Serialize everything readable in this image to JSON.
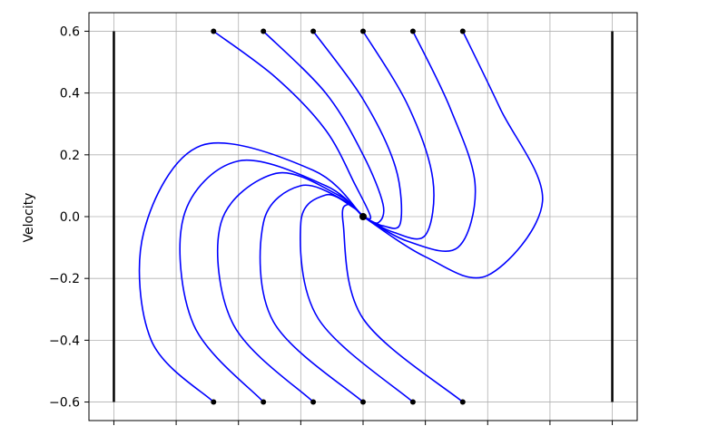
{
  "chart_data": {
    "type": "line",
    "title": "",
    "xlabel": "",
    "ylabel": "Velocity",
    "xlim": [
      -0.011,
      0.011
    ],
    "ylim": [
      -0.66,
      0.66
    ],
    "yticks": [
      0.6,
      0.4,
      0.2,
      0.0,
      -0.2,
      -0.4,
      -0.6
    ],
    "ytick_labels": [
      "0.6",
      "0.4",
      "0.2",
      "0.0",
      "−0.2",
      "−0.4",
      "−0.6"
    ],
    "xticks": [
      -0.01,
      -0.0075,
      -0.005,
      -0.0025,
      0.0,
      0.0025,
      0.005,
      0.0075,
      0.01
    ],
    "grid": true,
    "colors": {
      "trajectory": "#0000ff",
      "marker": "#000000",
      "wall": "#000000",
      "grid": "#b0b0b0"
    },
    "equilibrium": {
      "x": 0.0,
      "y": 0.0
    },
    "walls": [
      {
        "x": -0.01,
        "y": [
          -0.6,
          0.6
        ]
      },
      {
        "x": 0.01,
        "y": [
          -0.6,
          0.6
        ]
      }
    ],
    "start_points": [
      {
        "x": -0.006,
        "y": 0.6
      },
      {
        "x": -0.004,
        "y": 0.6
      },
      {
        "x": -0.002,
        "y": 0.6
      },
      {
        "x": 0.0,
        "y": 0.6
      },
      {
        "x": 0.002,
        "y": 0.6
      },
      {
        "x": 0.004,
        "y": 0.6
      },
      {
        "x": -0.006,
        "y": -0.6
      },
      {
        "x": -0.004,
        "y": -0.6
      },
      {
        "x": -0.002,
        "y": -0.6
      },
      {
        "x": 0.0,
        "y": -0.6
      },
      {
        "x": 0.002,
        "y": -0.6
      },
      {
        "x": 0.004,
        "y": -0.6
      }
    ],
    "series": [
      {
        "points": [
          [
            -0.006,
            0.6
          ],
          [
            -0.0035,
            0.45
          ],
          [
            -0.0015,
            0.28
          ],
          [
            -0.0003,
            0.1
          ],
          [
            0.0003,
            0.0
          ],
          [
            0.0,
            0.0
          ]
        ]
      },
      {
        "points": [
          [
            -0.004,
            0.6
          ],
          [
            -0.0015,
            0.4
          ],
          [
            0.0,
            0.2
          ],
          [
            0.0008,
            0.04
          ],
          [
            0.0006,
            -0.02
          ],
          [
            0.0,
            0.0
          ]
        ]
      },
      {
        "points": [
          [
            -0.002,
            0.6
          ],
          [
            0.0,
            0.38
          ],
          [
            0.0013,
            0.16
          ],
          [
            0.0015,
            -0.02
          ],
          [
            0.0008,
            -0.03
          ],
          [
            0.0,
            0.0
          ]
        ]
      },
      {
        "points": [
          [
            0.0,
            0.6
          ],
          [
            0.0018,
            0.36
          ],
          [
            0.0028,
            0.12
          ],
          [
            0.0025,
            -0.06
          ],
          [
            0.0012,
            -0.05
          ],
          [
            0.0,
            0.0
          ]
        ]
      },
      {
        "points": [
          [
            0.002,
            0.6
          ],
          [
            0.0035,
            0.35
          ],
          [
            0.0045,
            0.1
          ],
          [
            0.0038,
            -0.1
          ],
          [
            0.0018,
            -0.08
          ],
          [
            0.0,
            0.0
          ]
        ]
      },
      {
        "points": [
          [
            0.004,
            0.6
          ],
          [
            0.0055,
            0.35
          ],
          [
            0.0072,
            0.05
          ],
          [
            0.005,
            -0.19
          ],
          [
            0.0025,
            -0.13
          ],
          [
            0.0,
            0.0
          ]
        ]
      },
      {
        "points": [
          [
            -0.006,
            -0.6
          ],
          [
            -0.0085,
            -0.4
          ],
          [
            -0.0088,
            -0.05
          ],
          [
            -0.0065,
            0.23
          ],
          [
            -0.002,
            0.15
          ],
          [
            0.0,
            0.0
          ]
        ]
      },
      {
        "points": [
          [
            -0.004,
            -0.6
          ],
          [
            -0.0068,
            -0.35
          ],
          [
            -0.0072,
            0.0
          ],
          [
            -0.005,
            0.18
          ],
          [
            -0.0015,
            0.1
          ],
          [
            0.0,
            0.0
          ]
        ]
      },
      {
        "points": [
          [
            -0.002,
            -0.6
          ],
          [
            -0.0052,
            -0.35
          ],
          [
            -0.0057,
            -0.02
          ],
          [
            -0.0035,
            0.14
          ],
          [
            -0.001,
            0.07
          ],
          [
            0.0,
            0.0
          ]
        ]
      },
      {
        "points": [
          [
            0.0,
            -0.6
          ],
          [
            -0.0036,
            -0.34
          ],
          [
            -0.004,
            -0.02
          ],
          [
            -0.0025,
            0.1
          ],
          [
            -0.0007,
            0.05
          ],
          [
            0.0,
            0.0
          ]
        ]
      },
      {
        "points": [
          [
            0.002,
            -0.6
          ],
          [
            -0.0018,
            -0.33
          ],
          [
            -0.0025,
            -0.02
          ],
          [
            -0.0015,
            0.07
          ],
          [
            -0.0004,
            0.03
          ],
          [
            0.0,
            0.0
          ]
        ]
      },
      {
        "points": [
          [
            0.004,
            -0.6
          ],
          [
            0.0,
            -0.33
          ],
          [
            -0.0008,
            -0.02
          ],
          [
            -0.0006,
            0.04
          ],
          [
            -0.0001,
            0.01
          ],
          [
            0.0,
            0.0
          ]
        ]
      }
    ]
  }
}
